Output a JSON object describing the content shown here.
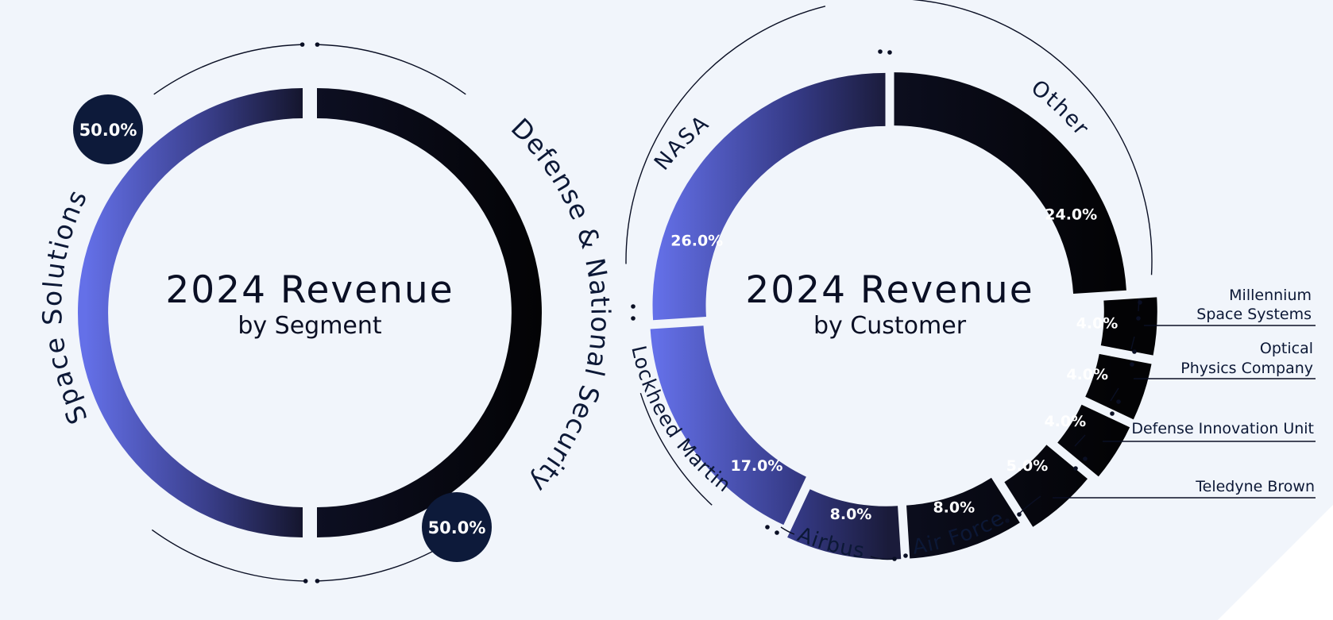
{
  "colors": {
    "background": "#f1f5fb",
    "gradient_light": "#6470e8",
    "gradient_mid": "#2e3270",
    "dark": "#05060c",
    "badge": "#0d1a3a",
    "label_text": "#0c1836",
    "line": "#0a0f24"
  },
  "chart_data": [
    {
      "type": "pie",
      "title": "2024 Revenue",
      "subtitle": "by Segment",
      "slices": [
        {
          "label": "Space Solutions",
          "value": 50.0,
          "value_label": "50.0%",
          "style": "gradient"
        },
        {
          "label": "Defense & National Security",
          "value": 50.0,
          "value_label": "50.0%",
          "style": "dark"
        }
      ]
    },
    {
      "type": "pie",
      "title": "2024 Revenue",
      "subtitle": "by Customer",
      "slices": [
        {
          "label": "Other",
          "value": 24.0,
          "value_label": "24.0%",
          "style": "dark"
        },
        {
          "label": "Millennium Space Systems",
          "label_lines": [
            "Millennium",
            "Space Systems"
          ],
          "value": 4.0,
          "value_label": "4.0%",
          "style": "dark"
        },
        {
          "label": "Optical Physics Company",
          "label_lines": [
            "Optical",
            "Physics Company"
          ],
          "value": 4.0,
          "value_label": "4.0%",
          "style": "dark"
        },
        {
          "label": "Defense Innovation Unit",
          "label_lines": [
            "Defense Innovation Unit"
          ],
          "value": 4.0,
          "value_label": "4.0%",
          "style": "dark"
        },
        {
          "label": "Teledyne Brown",
          "label_lines": [
            "Teledyne Brown"
          ],
          "value": 5.0,
          "value_label": "5.0%",
          "style": "dark"
        },
        {
          "label": "Air Force",
          "value": 8.0,
          "value_label": "8.0%",
          "style": "dark"
        },
        {
          "label": "Airbus",
          "value": 8.0,
          "value_label": "8.0%",
          "style": "gradient"
        },
        {
          "label": "Lockheed Martin",
          "value": 17.0,
          "value_label": "17.0%",
          "style": "gradient"
        },
        {
          "label": "NASA",
          "value": 26.0,
          "value_label": "26.0%",
          "style": "gradient"
        }
      ]
    }
  ]
}
